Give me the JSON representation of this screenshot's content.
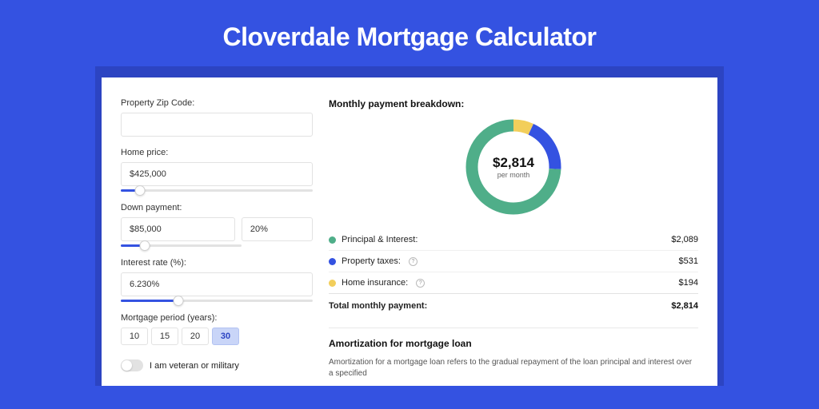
{
  "page": {
    "title": "Cloverdale Mortgage Calculator",
    "bg_color": "#3452e1",
    "band_color": "#2c44c2",
    "card_color": "#ffffff"
  },
  "form": {
    "zip": {
      "label": "Property Zip Code:",
      "value": ""
    },
    "home_price": {
      "label": "Home price:",
      "value": "$425,000",
      "slider_pct": 10
    },
    "down_payment": {
      "label": "Down payment:",
      "value": "$85,000",
      "pct_value": "20%",
      "slider_pct": 20
    },
    "interest_rate": {
      "label": "Interest rate (%):",
      "value": "6.230%",
      "slider_pct": 30
    },
    "period": {
      "label": "Mortgage period (years):",
      "options": [
        "10",
        "15",
        "20",
        "30"
      ],
      "selected": "30"
    },
    "veteran": {
      "label": "I am veteran or military",
      "checked": false
    }
  },
  "breakdown": {
    "title": "Monthly payment breakdown:",
    "donut": {
      "type": "donut",
      "amount": "$2,814",
      "sub": "per month",
      "segments": [
        {
          "label": "Principal & Interest:",
          "value": "$2,089",
          "numeric": 2089,
          "color": "#4fae89",
          "info": false
        },
        {
          "label": "Property taxes:",
          "value": "$531",
          "numeric": 531,
          "color": "#3452e1",
          "info": true
        },
        {
          "label": "Home insurance:",
          "value": "$194",
          "numeric": 194,
          "color": "#f2ce5b",
          "info": true
        }
      ],
      "stroke_width": 15,
      "radius": 52,
      "size": 120,
      "bg": "#ffffff"
    },
    "total": {
      "label": "Total monthly payment:",
      "value": "$2,814"
    }
  },
  "amortization": {
    "title": "Amortization for mortgage loan",
    "text": "Amortization for a mortgage loan refers to the gradual repayment of the loan principal and interest over a specified"
  }
}
